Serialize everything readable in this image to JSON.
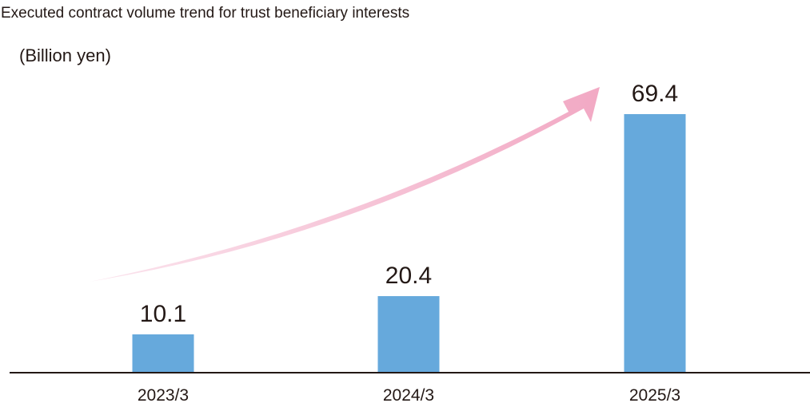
{
  "chart_data": {
    "type": "bar",
    "title": "Executed contract volume trend for trust beneficiary interests",
    "unit": "(Billion yen)",
    "categories": [
      "2023/3",
      "2024/3",
      "2025/3"
    ],
    "values": [
      10.1,
      20.4,
      69.4
    ],
    "value_labels": [
      "10.1",
      "20.4",
      "69.4"
    ],
    "ylim": [
      0,
      69.4
    ],
    "grid": false,
    "legend": "none",
    "trend_arrow": true,
    "colors": {
      "bar": "#66a9dc",
      "arrow_start": "#fbe5ee",
      "arrow_end": "#f2a9c4",
      "text": "#231815",
      "axis": "#231815"
    }
  }
}
